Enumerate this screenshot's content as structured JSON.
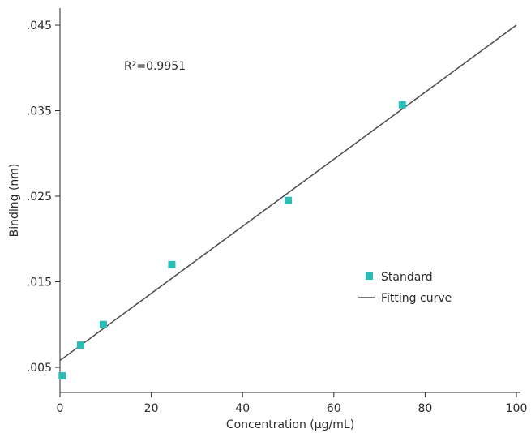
{
  "chart_data": {
    "type": "scatter",
    "xlabel": "Concentration (µg/mL)",
    "ylabel": "Binding (nm)",
    "xlim": [
      0,
      100
    ],
    "ylim": [
      0.0025,
      0.047
    ],
    "x_ticks": [
      0,
      20,
      40,
      60,
      80,
      100
    ],
    "x_tick_labels": [
      "0",
      "20",
      "40",
      "60",
      "80",
      "100"
    ],
    "y_ticks": [
      0.005,
      0.015,
      0.025,
      0.035,
      0.045
    ],
    "y_tick_labels": [
      ".005",
      ".015",
      ".025",
      ".035",
      ".045"
    ],
    "grid": false,
    "legend_position": "center-right",
    "annotation": "R²=0.9951",
    "series": [
      {
        "name": "Standard",
        "type": "scatter",
        "marker": "square",
        "color": "#2bbcb5",
        "points": [
          {
            "x": 0.5,
            "y": 0.004
          },
          {
            "x": 4.5,
            "y": 0.0076
          },
          {
            "x": 9.5,
            "y": 0.01
          },
          {
            "x": 24.5,
            "y": 0.017
          },
          {
            "x": 50,
            "y": 0.0245
          },
          {
            "x": 75,
            "y": 0.0357
          }
        ]
      },
      {
        "name": "Fitting curve",
        "type": "line",
        "color": "#4a4a4a",
        "points": [
          {
            "x": 0,
            "y": 0.0058
          },
          {
            "x": 100,
            "y": 0.045
          }
        ]
      }
    ]
  }
}
